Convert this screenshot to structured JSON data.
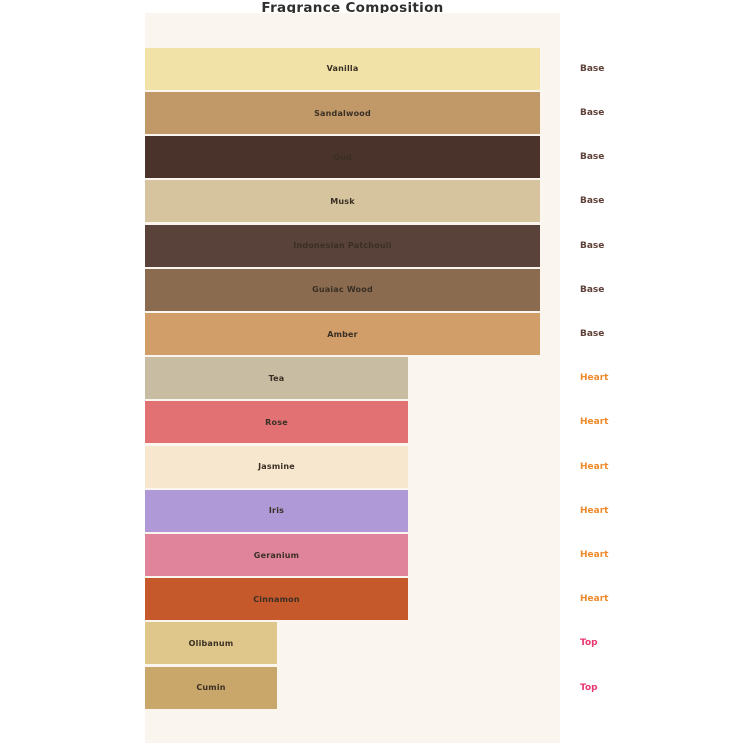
{
  "title": "Fragrance Composition",
  "colors": {
    "page_background": "#ffffff",
    "plot_background": "#faf6ef",
    "title_text": "#2f2f2f",
    "bar_label_text": "#3a2f24",
    "layer_label_colors": {
      "Base": "#5d4037",
      "Heart": "#ef8a2b",
      "Top": "#e8386f"
    }
  },
  "chart_data": {
    "type": "bar",
    "orientation": "horizontal",
    "title": "Fragrance Composition",
    "xlabel": "",
    "ylabel": "",
    "xlim": [
      0,
      3.15
    ],
    "grid": false,
    "axes_visible": false,
    "legend": "none",
    "value_note": "bar widths are relative: Base=3, Heart=2, Top=1",
    "bars": [
      {
        "label": "Vanilla",
        "layer": "Base",
        "value": 3,
        "color": "#f1e2a8"
      },
      {
        "label": "Sandalwood",
        "layer": "Base",
        "value": 3,
        "color": "#c19969"
      },
      {
        "label": "Oud",
        "layer": "Base",
        "value": 3,
        "color": "#4a332b"
      },
      {
        "label": "Musk",
        "layer": "Base",
        "value": 3,
        "color": "#d5c49d"
      },
      {
        "label": "Indonesian Patchouli",
        "layer": "Base",
        "value": 3,
        "color": "#594239"
      },
      {
        "label": "Guaiac Wood",
        "layer": "Base",
        "value": 3,
        "color": "#8a6b4f"
      },
      {
        "label": "Amber",
        "layer": "Base",
        "value": 3,
        "color": "#d19d68"
      },
      {
        "label": "Tea",
        "layer": "Heart",
        "value": 2,
        "color": "#c8bca2"
      },
      {
        "label": "Rose",
        "layer": "Heart",
        "value": 2,
        "color": "#e17173"
      },
      {
        "label": "Jasmine",
        "layer": "Heart",
        "value": 2,
        "color": "#f7e7ce"
      },
      {
        "label": "Iris",
        "layer": "Heart",
        "value": 2,
        "color": "#af99d6"
      },
      {
        "label": "Geranium",
        "layer": "Heart",
        "value": 2,
        "color": "#df849a"
      },
      {
        "label": "Cinnamon",
        "layer": "Heart",
        "value": 2,
        "color": "#c6592c"
      },
      {
        "label": "Olibanum",
        "layer": "Top",
        "value": 1,
        "color": "#dfc78c"
      },
      {
        "label": "Cumin",
        "layer": "Top",
        "value": 1,
        "color": "#c9a76a"
      }
    ]
  }
}
